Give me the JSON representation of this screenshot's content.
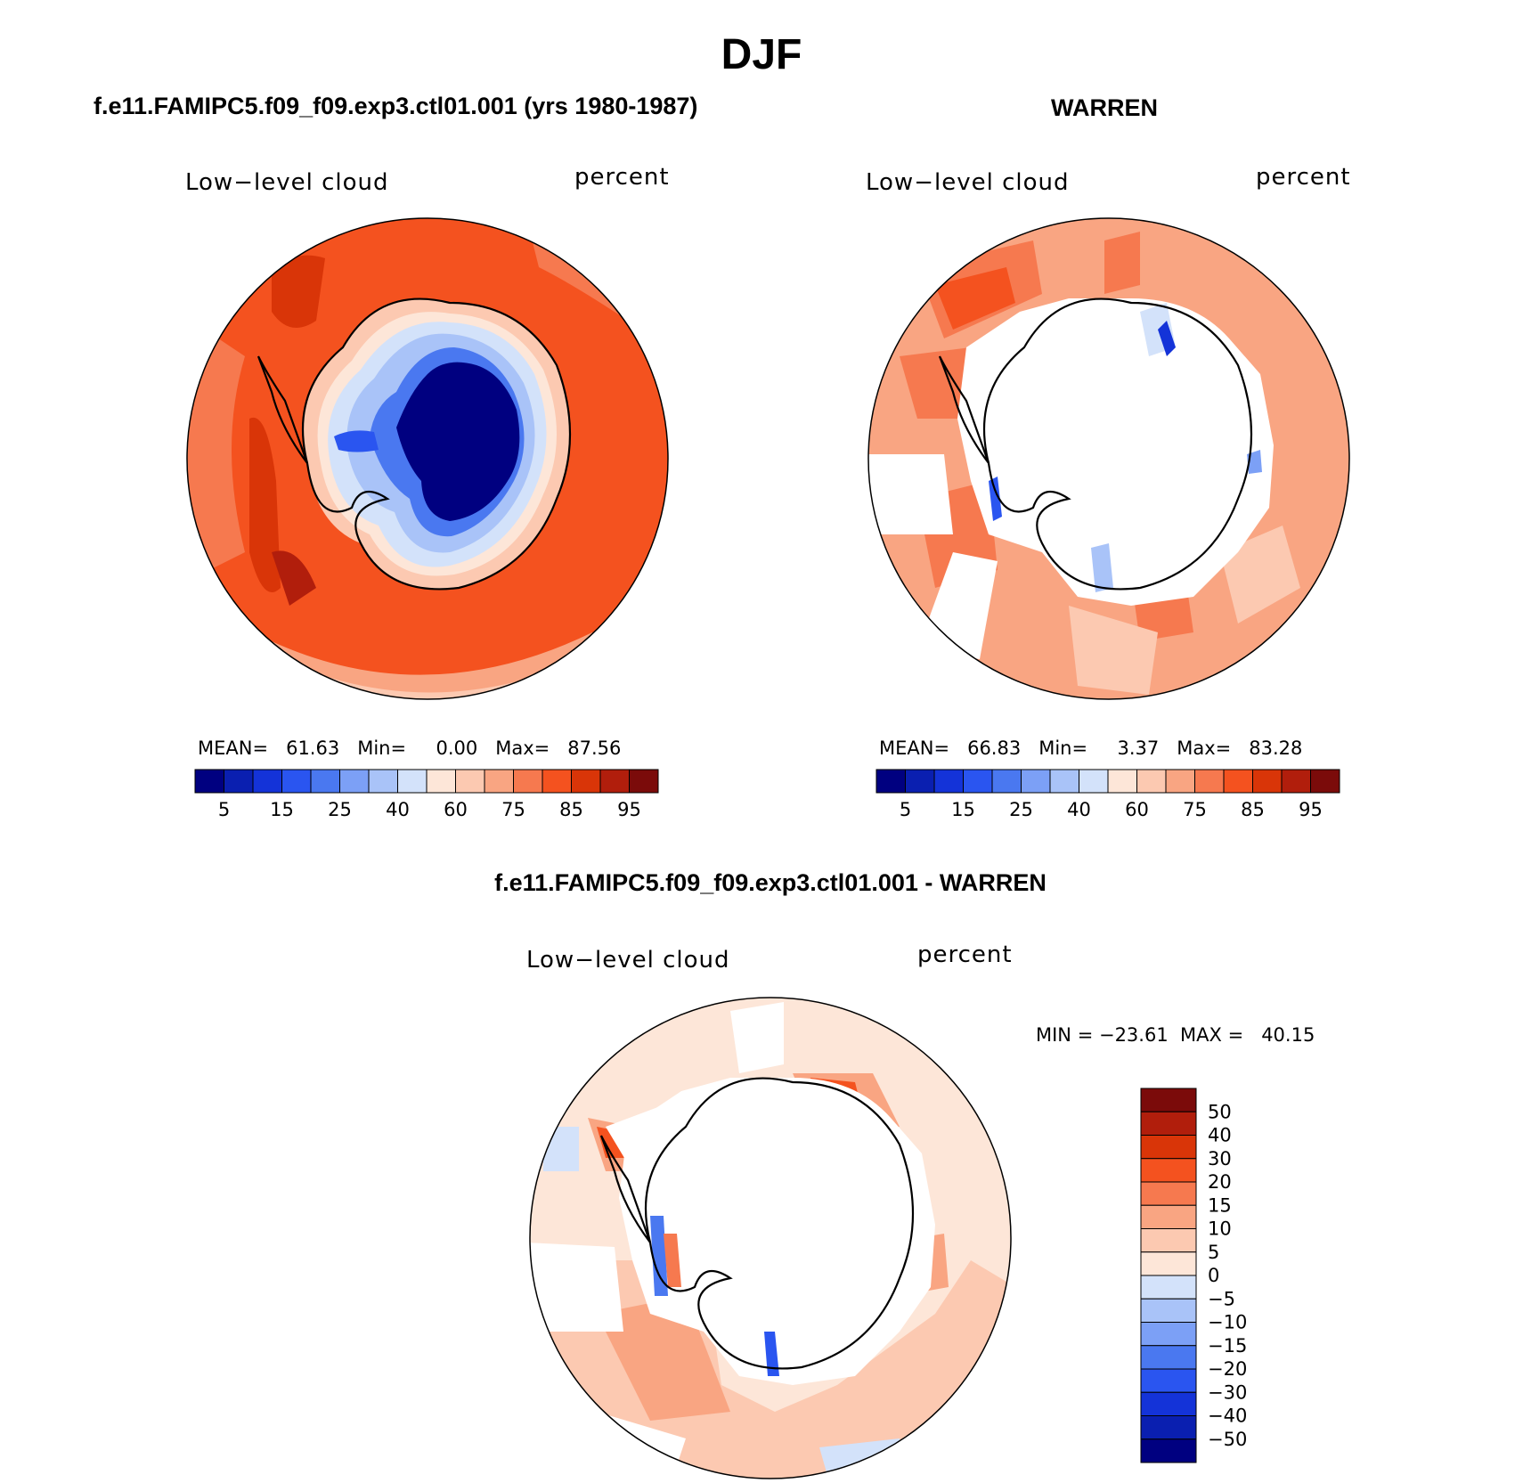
{
  "page": {
    "title": "DJF",
    "colors": {
      "levels_fill": [
        "#000080",
        "#0a1fb0",
        "#1433d8",
        "#2a55f0",
        "#4a78f0",
        "#7ca0f6",
        "#a9c3f8",
        "#d3e2fa",
        "#fde6d8",
        "#fcc9b1",
        "#f9a582",
        "#f6794f",
        "#f4521f",
        "#d93508",
        "#b11e0c",
        "#7b0b0a"
      ],
      "diff_fill": [
        "#7b0b0a",
        "#b11e0c",
        "#d93508",
        "#f4521f",
        "#f6794f",
        "#f9a582",
        "#fcc9b1",
        "#fde6d8",
        "#d3e2fa",
        "#a9c3f8",
        "#7ca0f6",
        "#4a78f0",
        "#2a55f0",
        "#1433d8",
        "#0a1fb0",
        "#000080"
      ]
    }
  },
  "panels": [
    {
      "id": "model",
      "case_title": "f.e11.FAMIPC5.f09_f09.exp3.ctl01.001 (yrs 1980-1987)",
      "variable": "Low−level cloud",
      "units": "percent",
      "stats": "MEAN=   61.63   Min=     0.00   Max=   87.56",
      "colorbar_ticks": [
        "5",
        "15",
        "25",
        "40",
        "60",
        "75",
        "85",
        "95"
      ]
    },
    {
      "id": "obs",
      "case_title": "WARREN",
      "variable": "Low−level cloud",
      "units": "percent",
      "stats": "MEAN=   66.83   Min=     3.37   Max=   83.28",
      "colorbar_ticks": [
        "5",
        "15",
        "25",
        "40",
        "60",
        "75",
        "85",
        "95"
      ]
    },
    {
      "id": "diff",
      "case_title": "f.e11.FAMIPC5.f09_f09.exp3.ctl01.001 - WARREN",
      "variable": "Low−level cloud",
      "units": "percent",
      "stats": "MIN = −23.61  MAX =   40.15",
      "colorbar_ticks": [
        "50",
        "40",
        "30",
        "20",
        "15",
        "10",
        "5",
        "0",
        "−5",
        "−10",
        "−15",
        "−20",
        "−30",
        "−40",
        "−50"
      ]
    }
  ],
  "chart_data": [
    {
      "type": "heatmap",
      "title": "f.e11.FAMIPC5.f09_f09.exp3.ctl01.001 (yrs 1980-1987)",
      "variable": "Low-level cloud",
      "units": "percent",
      "projection": "south polar stereographic",
      "stats": {
        "mean": 61.63,
        "min": 0.0,
        "max": 87.56
      },
      "contour_levels": [
        5,
        10,
        15,
        20,
        25,
        30,
        40,
        50,
        60,
        70,
        75,
        80,
        85,
        90,
        95
      ],
      "colorbar_tick_labels": [
        5,
        15,
        25,
        40,
        60,
        75,
        85,
        95
      ]
    },
    {
      "type": "heatmap",
      "title": "WARREN",
      "variable": "Low-level cloud",
      "units": "percent",
      "projection": "south polar stereographic",
      "stats": {
        "mean": 66.83,
        "min": 3.37,
        "max": 83.28
      },
      "contour_levels": [
        5,
        10,
        15,
        20,
        25,
        30,
        40,
        50,
        60,
        70,
        75,
        80,
        85,
        90,
        95
      ],
      "colorbar_tick_labels": [
        5,
        15,
        25,
        40,
        60,
        75,
        85,
        95
      ]
    },
    {
      "type": "heatmap",
      "title": "f.e11.FAMIPC5.f09_f09.exp3.ctl01.001 - WARREN",
      "variable": "Low-level cloud",
      "units": "percent",
      "projection": "south polar stereographic",
      "stats": {
        "min": -23.61,
        "max": 40.15
      },
      "contour_levels": [
        -50,
        -40,
        -30,
        -20,
        -15,
        -10,
        -5,
        0,
        5,
        10,
        15,
        20,
        30,
        40,
        50
      ],
      "colorbar_tick_labels": [
        50,
        40,
        30,
        20,
        15,
        10,
        5,
        0,
        -5,
        -10,
        -15,
        -20,
        -30,
        -40,
        -50
      ]
    }
  ]
}
